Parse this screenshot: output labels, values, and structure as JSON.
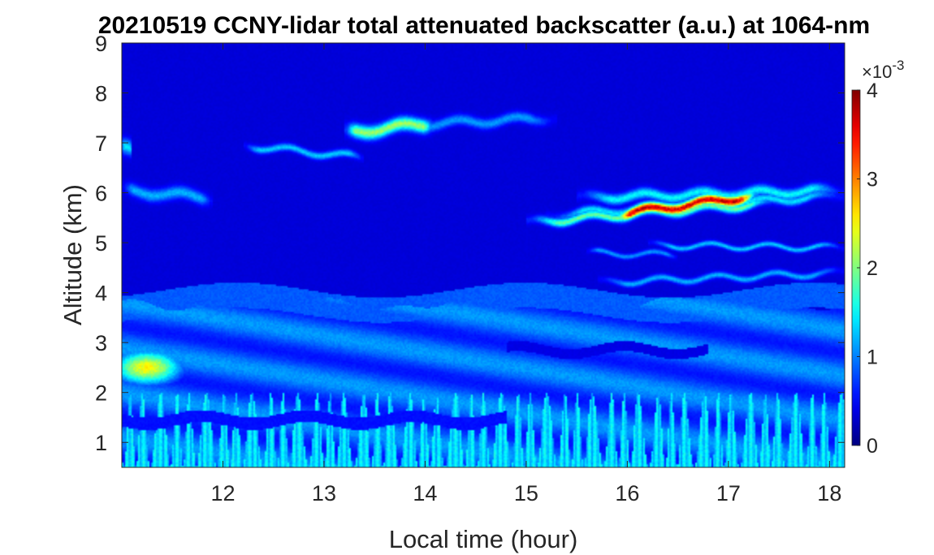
{
  "chart_data": {
    "type": "heatmap",
    "title": "20210519 CCNY-lidar total attenuated backscatter (a.u.) at 1064-nm",
    "xlabel": "Local time (hour)",
    "ylabel": "Altitude (km)",
    "xlim": [
      11.0,
      18.15
    ],
    "ylim": [
      0.5,
      9
    ],
    "xticks": [
      12,
      13,
      14,
      15,
      16,
      17,
      18
    ],
    "yticks": [
      1,
      2,
      3,
      4,
      5,
      6,
      7,
      8,
      9
    ],
    "colorbar": {
      "colormap": "jet",
      "range": [
        0,
        4
      ],
      "ticks": [
        0,
        1,
        2,
        3,
        4
      ],
      "exponent_label": "×10",
      "exponent_power": "-3"
    },
    "background_level": 0.35,
    "features": [
      {
        "kind": "boundary_layer",
        "t_start": 11.0,
        "t_end": 18.15,
        "alt_bottom": 0.5,
        "alt_top": 3.8,
        "value": 1.05
      },
      {
        "kind": "boundary_layer_top_band",
        "t_start": 11.0,
        "t_end": 18.15,
        "alt": 3.8,
        "thickness": 0.25,
        "value": 0.85
      },
      {
        "kind": "surface_plumes",
        "t_start": 11.0,
        "t_end": 18.15,
        "alt_bottom": 0.5,
        "alt_top": 2.0,
        "value": 1.4
      },
      {
        "kind": "dark_layer",
        "t_start": 11.0,
        "t_end": 14.8,
        "alt": 1.45,
        "thickness": 0.12,
        "value": 0.55
      },
      {
        "kind": "dark_layer",
        "t_start": 14.8,
        "t_end": 16.8,
        "alt": 2.85,
        "thickness": 0.1,
        "value": 0.4
      },
      {
        "kind": "aerosol_blob",
        "t": 11.25,
        "alt": 2.5,
        "sigma_t": 0.35,
        "sigma_alt": 0.35,
        "value": 2.5
      },
      {
        "kind": "layer",
        "t_start": 11.0,
        "t_end": 11.9,
        "alt_start": 6.05,
        "alt_end": 5.9,
        "thickness": 0.12,
        "value": 1.2
      },
      {
        "kind": "layer",
        "t_start": 11.0,
        "t_end": 11.1,
        "alt_start": 6.9,
        "alt_end": 6.9,
        "thickness": 0.15,
        "value": 1.4
      },
      {
        "kind": "layer",
        "t_start": 12.2,
        "t_end": 13.4,
        "alt_start": 6.95,
        "alt_end": 6.7,
        "thickness": 0.07,
        "value": 1.3
      },
      {
        "kind": "layer",
        "t_start": 13.2,
        "t_end": 14.1,
        "alt_start": 7.2,
        "alt_end": 7.4,
        "thickness": 0.13,
        "value": 2.1
      },
      {
        "kind": "layer",
        "t_start": 13.2,
        "t_end": 15.3,
        "alt_start": 7.3,
        "alt_end": 7.5,
        "thickness": 0.1,
        "value": 1.1
      },
      {
        "kind": "layer",
        "t_start": 15.2,
        "t_end": 18.15,
        "alt_start": 5.55,
        "alt_end": 5.95,
        "thickness": 0.08,
        "value": 1.4
      },
      {
        "kind": "layer",
        "t_start": 15.5,
        "t_end": 18.15,
        "alt_start": 5.9,
        "alt_end": 6.05,
        "thickness": 0.1,
        "value": 1.5
      },
      {
        "kind": "layer",
        "t_start": 15.0,
        "t_end": 17.5,
        "alt_start": 5.4,
        "alt_end": 5.8,
        "thickness": 0.08,
        "value": 1.9
      },
      {
        "kind": "layer",
        "t_start": 15.85,
        "t_end": 17.3,
        "alt_start": 5.55,
        "alt_end": 5.95,
        "thickness": 0.1,
        "value": 3.7
      },
      {
        "kind": "layer",
        "t_start": 16.2,
        "t_end": 18.15,
        "alt_start": 4.95,
        "alt_end": 4.9,
        "thickness": 0.05,
        "value": 1.3
      },
      {
        "kind": "layer",
        "t_start": 15.6,
        "t_end": 16.5,
        "alt_start": 4.8,
        "alt_end": 4.75,
        "thickness": 0.05,
        "value": 1.1
      },
      {
        "kind": "layer",
        "t_start": 15.7,
        "t_end": 18.15,
        "alt_start": 4.2,
        "alt_end": 4.4,
        "thickness": 0.06,
        "value": 1.2
      }
    ]
  }
}
